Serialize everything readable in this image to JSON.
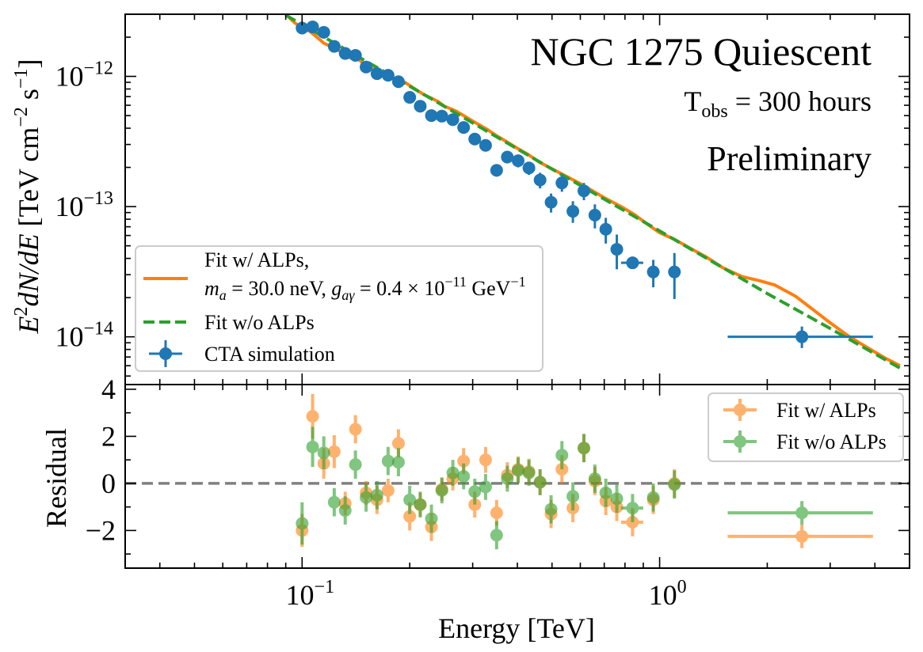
{
  "chart_data": [
    {
      "panel": "main",
      "type": "line+scatter",
      "scale": {
        "x": "log",
        "y": "log"
      },
      "xlim": [
        0.032,
        5.0
      ],
      "ylim": [
        4.3e-15,
        3e-12
      ],
      "ylabel_parts": {
        "a": "E",
        "b": "2",
        "c": "dN",
        "d": "/",
        "e": "dE",
        "f": " [TeV cm",
        "g": "−2",
        "h": " s",
        "i": "−1",
        "j": "]"
      },
      "yticks": [
        {
          "value": 1e-12,
          "base": "10",
          "exp": "−12"
        },
        {
          "value": 1e-13,
          "base": "10",
          "exp": "−13"
        },
        {
          "value": 1e-14,
          "base": "10",
          "exp": "−14"
        }
      ],
      "annotations": {
        "title": "NGC 1275 Quiescent",
        "tobs": {
          "base": "T",
          "sub": "obs",
          "rest": " = 300 hours"
        },
        "status": "Preliminary"
      },
      "legend": {
        "position": "lower-left",
        "alps_line1": "Fit w/ ALPs,",
        "alps_ma": "m",
        "alps_ma_sub": "a",
        "alps_ma_val": " = 30.0 neV, ",
        "alps_g": "g",
        "alps_g_sub": "aγ",
        "alps_g_val": " = 0.4 × 10",
        "alps_g_exp": "−11",
        "alps_g_unit": " GeV",
        "alps_g_unit_exp": "−1",
        "noalps": "Fit w/o ALPs",
        "cta": "CTA simulation"
      },
      "colors": {
        "alps": "#ff7f0e",
        "noalps": "#2ca02c",
        "cta": "#1f77b4"
      },
      "series": [
        {
          "name": "Fit w/ ALPs",
          "style": "solid",
          "x": [
            0.09,
            0.095,
            0.1,
            0.105,
            0.11,
            0.115,
            0.12,
            0.125,
            0.13,
            0.135,
            0.14,
            0.145,
            0.15,
            0.16,
            0.17,
            0.18,
            0.19,
            0.2,
            0.21,
            0.22,
            0.23,
            0.24,
            0.25,
            0.27,
            0.29,
            0.31,
            0.33,
            0.35,
            0.37,
            0.4,
            0.43,
            0.46,
            0.5,
            0.55,
            0.6,
            0.65,
            0.7,
            0.78,
            0.85,
            0.92,
            1.0,
            1.1,
            1.2,
            1.35,
            1.5,
            1.7,
            1.9,
            2.1,
            2.4,
            2.7,
            3.0,
            3.4,
            3.8,
            4.3,
            4.7
          ],
          "y": [
            3e-12,
            2.6e-12,
            2.35e-12,
            2.22e-12,
            2e-12,
            1.8e-12,
            1.7e-12,
            1.62e-12,
            1.5e-12,
            1.4e-12,
            1.37e-12,
            1.33e-12,
            1.22e-12,
            1.12e-12,
            1.02e-12,
            9.7e-13,
            9.3e-13,
            8.5e-13,
            7.8e-13,
            7.2e-13,
            6.8e-13,
            6.4e-13,
            5.9e-13,
            5.4e-13,
            4.8e-13,
            4.3e-13,
            3.9e-13,
            3.5e-13,
            3.2e-13,
            2.8e-13,
            2.5e-13,
            2.2e-13,
            1.95e-13,
            1.7e-13,
            1.5e-13,
            1.32e-13,
            1.17e-13,
            1e-13,
            8.7e-14,
            7.4e-14,
            6.3e-14,
            5.6e-14,
            4.9e-14,
            4.1e-14,
            3.4e-14,
            2.9e-14,
            2.7e-14,
            2.5e-14,
            2.05e-14,
            1.6e-14,
            1.28e-14,
            1e-14,
            8.3e-15,
            6.8e-15,
            6e-15
          ]
        },
        {
          "name": "Fit w/o ALPs",
          "style": "dashed",
          "x": [
            0.09,
            0.2,
            0.5,
            1.0,
            2.0,
            3.0,
            4.7
          ],
          "y": [
            2.95e-12,
            8.4e-13,
            1.94e-13,
            6.5e-14,
            2.15e-14,
            1.16e-14,
            5.75e-15
          ]
        },
        {
          "name": "CTA simulation",
          "style": "errorbar",
          "points": [
            {
              "x": 0.1,
              "y": 2.35e-12,
              "ylo": 2.28e-12,
              "yhi": 2.42e-12
            },
            {
              "x": 0.107,
              "y": 2.4e-12,
              "ylo": 2.33e-12,
              "yhi": 2.47e-12
            },
            {
              "x": 0.115,
              "y": 2.18e-12,
              "ylo": 2.11e-12,
              "yhi": 2.25e-12
            },
            {
              "x": 0.123,
              "y": 1.7e-12,
              "ylo": 1.64e-12,
              "yhi": 1.76e-12
            },
            {
              "x": 0.132,
              "y": 1.5e-12,
              "ylo": 1.45e-12,
              "yhi": 1.55e-12
            },
            {
              "x": 0.141,
              "y": 1.45e-12,
              "ylo": 1.4e-12,
              "yhi": 1.5e-12
            },
            {
              "x": 0.151,
              "y": 1.18e-12,
              "ylo": 1.14e-12,
              "yhi": 1.22e-12
            },
            {
              "x": 0.162,
              "y": 1.05e-12,
              "ylo": 1.01e-12,
              "yhi": 1.09e-12
            },
            {
              "x": 0.174,
              "y": 1.02e-12,
              "ylo": 9.8e-13,
              "yhi": 1.06e-12
            },
            {
              "x": 0.186,
              "y": 9.1e-13,
              "ylo": 8.7e-13,
              "yhi": 9.5e-13
            },
            {
              "x": 0.2,
              "y": 6.9e-13,
              "ylo": 6.6e-13,
              "yhi": 7.2e-13
            },
            {
              "x": 0.214,
              "y": 5.9e-13,
              "ylo": 5.6e-13,
              "yhi": 6.2e-13
            },
            {
              "x": 0.23,
              "y": 5e-13,
              "ylo": 4.75e-13,
              "yhi": 5.25e-13
            },
            {
              "x": 0.246,
              "y": 4.95e-13,
              "ylo": 4.7e-13,
              "yhi": 5.2e-13
            },
            {
              "x": 0.264,
              "y": 4.65e-13,
              "ylo": 4.4e-13,
              "yhi": 4.9e-13
            },
            {
              "x": 0.283,
              "y": 4.05e-13,
              "ylo": 3.8e-13,
              "yhi": 4.3e-13
            },
            {
              "x": 0.304,
              "y": 3.3e-13,
              "ylo": 3.05e-13,
              "yhi": 3.55e-13
            },
            {
              "x": 0.326,
              "y": 2.95e-13,
              "ylo": 2.7e-13,
              "yhi": 3.2e-13
            },
            {
              "x": 0.35,
              "y": 1.9e-13,
              "ylo": 1.7e-13,
              "yhi": 2.1e-13
            },
            {
              "x": 0.375,
              "y": 2.4e-13,
              "ylo": 2.15e-13,
              "yhi": 2.65e-13
            },
            {
              "x": 0.402,
              "y": 2.25e-13,
              "ylo": 2e-13,
              "yhi": 2.5e-13
            },
            {
              "x": 0.431,
              "y": 1.98e-13,
              "ylo": 1.75e-13,
              "yhi": 2.2e-13
            },
            {
              "x": 0.463,
              "y": 1.6e-13,
              "ylo": 1.38e-13,
              "yhi": 1.82e-13
            },
            {
              "x": 0.497,
              "y": 1.08e-13,
              "ylo": 9e-14,
              "yhi": 1.26e-13
            },
            {
              "x": 0.533,
              "y": 1.52e-13,
              "ylo": 1.3e-13,
              "yhi": 1.74e-13
            },
            {
              "x": 0.572,
              "y": 9.2e-14,
              "ylo": 7.5e-14,
              "yhi": 1.1e-13
            },
            {
              "x": 0.614,
              "y": 1.32e-13,
              "ylo": 1.12e-13,
              "yhi": 1.52e-13
            },
            {
              "x": 0.659,
              "y": 8.6e-14,
              "ylo": 6.8e-14,
              "yhi": 1.04e-13
            },
            {
              "x": 0.707,
              "y": 6.7e-14,
              "ylo": 5.2e-14,
              "yhi": 8.2e-14
            },
            {
              "x": 0.759,
              "y": 4.7e-14,
              "ylo": 3.3e-14,
              "yhi": 6.1e-14
            },
            {
              "x": 0.84,
              "y": 3.7e-14,
              "xlo": 0.78,
              "xhi": 0.9,
              "ylo": 3.4e-14,
              "yhi": 4e-14
            },
            {
              "x": 0.96,
              "y": 3.15e-14,
              "ylo": 2.4e-14,
              "yhi": 3.9e-14
            },
            {
              "x": 1.1,
              "y": 3.15e-14,
              "ylo": 1.95e-14,
              "yhi": 4.4e-14
            },
            {
              "x": 2.5,
              "y": 1e-14,
              "xlo": 1.55,
              "xhi": 3.95,
              "ylo": 8.2e-15,
              "yhi": 1.2e-14
            }
          ]
        }
      ]
    },
    {
      "panel": "residual",
      "type": "scatter",
      "scale": {
        "x": "log",
        "y": "linear"
      },
      "xlim": [
        0.032,
        5.0
      ],
      "ylim": [
        -3.6,
        4.2
      ],
      "xlabel": "Energy [TeV]",
      "ylabel": "Residual",
      "xticks": [
        {
          "value": 0.1,
          "base": "10",
          "exp": "−1"
        },
        {
          "value": 1.0,
          "base": "10",
          "exp": "0"
        }
      ],
      "yticks": [
        {
          "value": 4,
          "label": "4"
        },
        {
          "value": 2,
          "label": "2"
        },
        {
          "value": 0,
          "label": "0"
        },
        {
          "value": -2,
          "label": "−2"
        }
      ],
      "zero_line": 0,
      "legend": {
        "position": "top-right",
        "alps": "Fit w/ ALPs",
        "noalps": "Fit w/o ALPs"
      },
      "colors": {
        "alps": "#ff7f0e",
        "noalps": "#2ca02c",
        "zero": "#808080"
      },
      "series": [
        {
          "name": "Fit w/ ALPs",
          "points": [
            {
              "x": 0.1,
              "y": -2.0,
              "err": 0.7
            },
            {
              "x": 0.107,
              "y": 2.85,
              "err": 0.95
            },
            {
              "x": 0.115,
              "y": 0.85,
              "err": 0.65
            },
            {
              "x": 0.123,
              "y": 1.35,
              "err": 0.7
            },
            {
              "x": 0.132,
              "y": -0.85,
              "err": 0.5
            },
            {
              "x": 0.141,
              "y": 2.3,
              "err": 0.6
            },
            {
              "x": 0.151,
              "y": -0.4,
              "err": 0.5
            },
            {
              "x": 0.162,
              "y": -0.7,
              "err": 0.6
            },
            {
              "x": 0.174,
              "y": -0.3,
              "err": 0.5
            },
            {
              "x": 0.186,
              "y": 1.7,
              "err": 0.6
            },
            {
              "x": 0.2,
              "y": -1.4,
              "err": 0.6
            },
            {
              "x": 0.214,
              "y": -0.9,
              "err": 0.5
            },
            {
              "x": 0.23,
              "y": -1.85,
              "err": 0.6
            },
            {
              "x": 0.246,
              "y": -0.25,
              "err": 0.5
            },
            {
              "x": 0.264,
              "y": 0.2,
              "err": 0.5
            },
            {
              "x": 0.283,
              "y": 0.95,
              "err": 0.55
            },
            {
              "x": 0.304,
              "y": -0.9,
              "err": 0.55
            },
            {
              "x": 0.326,
              "y": 1.0,
              "err": 0.55
            },
            {
              "x": 0.35,
              "y": -1.25,
              "err": 0.55
            },
            {
              "x": 0.375,
              "y": 0.35,
              "err": 0.55
            },
            {
              "x": 0.402,
              "y": 0.6,
              "err": 0.55
            },
            {
              "x": 0.431,
              "y": 0.5,
              "err": 0.55
            },
            {
              "x": 0.463,
              "y": 0.05,
              "err": 0.55
            },
            {
              "x": 0.497,
              "y": -1.3,
              "err": 0.6
            },
            {
              "x": 0.533,
              "y": 0.6,
              "err": 0.6
            },
            {
              "x": 0.572,
              "y": -1.05,
              "err": 0.6
            },
            {
              "x": 0.614,
              "y": 1.5,
              "err": 0.6
            },
            {
              "x": 0.659,
              "y": 0.1,
              "err": 0.6
            },
            {
              "x": 0.707,
              "y": -0.75,
              "err": 0.6
            },
            {
              "x": 0.759,
              "y": -1.0,
              "err": 0.6
            },
            {
              "x": 0.84,
              "y": -1.65,
              "xlo": 0.78,
              "xhi": 0.9,
              "err": 0.6
            },
            {
              "x": 0.96,
              "y": -0.7,
              "err": 0.6
            },
            {
              "x": 1.1,
              "y": 0.0,
              "err": 0.6
            },
            {
              "x": 2.5,
              "y": -2.25,
              "xlo": 1.55,
              "xhi": 3.95,
              "err": 0.5
            }
          ]
        },
        {
          "name": "Fit w/o ALPs",
          "points": [
            {
              "x": 0.1,
              "y": -1.7,
              "err": 0.9
            },
            {
              "x": 0.107,
              "y": 1.55,
              "err": 0.85
            },
            {
              "x": 0.115,
              "y": 1.3,
              "err": 0.7
            },
            {
              "x": 0.123,
              "y": -0.8,
              "err": 0.6
            },
            {
              "x": 0.132,
              "y": -1.15,
              "err": 0.6
            },
            {
              "x": 0.141,
              "y": 0.8,
              "err": 0.6
            },
            {
              "x": 0.151,
              "y": -0.6,
              "err": 0.6
            },
            {
              "x": 0.162,
              "y": -0.5,
              "err": 0.6
            },
            {
              "x": 0.174,
              "y": 0.95,
              "err": 0.6
            },
            {
              "x": 0.186,
              "y": 0.9,
              "err": 0.6
            },
            {
              "x": 0.2,
              "y": -0.7,
              "err": 0.6
            },
            {
              "x": 0.214,
              "y": -0.9,
              "err": 0.55
            },
            {
              "x": 0.23,
              "y": -1.5,
              "err": 0.6
            },
            {
              "x": 0.246,
              "y": -0.3,
              "err": 0.55
            },
            {
              "x": 0.264,
              "y": 0.45,
              "err": 0.55
            },
            {
              "x": 0.283,
              "y": 0.3,
              "err": 0.55
            },
            {
              "x": 0.304,
              "y": -0.35,
              "err": 0.55
            },
            {
              "x": 0.326,
              "y": -0.15,
              "err": 0.55
            },
            {
              "x": 0.35,
              "y": -2.2,
              "err": 0.6
            },
            {
              "x": 0.375,
              "y": 0.2,
              "err": 0.55
            },
            {
              "x": 0.402,
              "y": 0.55,
              "err": 0.55
            },
            {
              "x": 0.431,
              "y": 0.45,
              "err": 0.55
            },
            {
              "x": 0.463,
              "y": 0.05,
              "err": 0.55
            },
            {
              "x": 0.497,
              "y": -1.1,
              "err": 0.6
            },
            {
              "x": 0.533,
              "y": 1.2,
              "err": 0.6
            },
            {
              "x": 0.572,
              "y": -0.55,
              "err": 0.6
            },
            {
              "x": 0.614,
              "y": 1.5,
              "err": 0.6
            },
            {
              "x": 0.659,
              "y": 0.2,
              "err": 0.6
            },
            {
              "x": 0.707,
              "y": -0.4,
              "err": 0.6
            },
            {
              "x": 0.759,
              "y": -0.65,
              "err": 0.6
            },
            {
              "x": 0.84,
              "y": -1.05,
              "xlo": 0.78,
              "xhi": 0.9,
              "err": 0.6
            },
            {
              "x": 0.96,
              "y": -0.6,
              "err": 0.6
            },
            {
              "x": 1.1,
              "y": -0.05,
              "err": 0.6
            },
            {
              "x": 2.5,
              "y": -1.25,
              "xlo": 1.55,
              "xhi": 3.95,
              "err": 0.5
            }
          ]
        }
      ]
    }
  ]
}
